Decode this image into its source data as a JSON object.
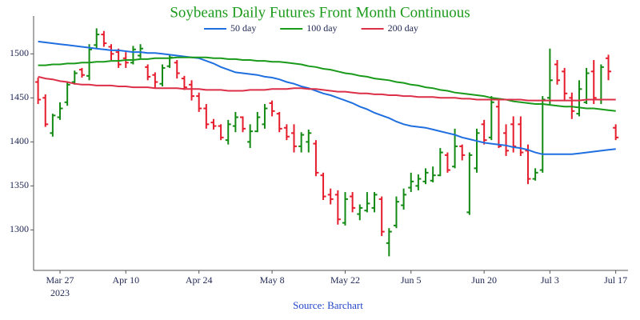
{
  "chart_data": {
    "type": "ohlc",
    "title": "Soybeans Daily Futures Front Month Continuous",
    "source": "Source: Barchart",
    "year_label": "2023",
    "legend": "top",
    "up_color": "#138a13",
    "down_color": "#e51c2c",
    "categories": [
      null,
      null,
      null,
      "Mar 27",
      null,
      null,
      null,
      null,
      null,
      null,
      null,
      null,
      "Apr 10",
      null,
      null,
      null,
      null,
      null,
      null,
      null,
      null,
      null,
      "Apr 24",
      null,
      null,
      null,
      null,
      null,
      null,
      null,
      null,
      null,
      "May 8",
      null,
      null,
      null,
      null,
      null,
      null,
      null,
      null,
      null,
      "May 22",
      null,
      null,
      null,
      null,
      null,
      null,
      null,
      null,
      "Jun 5",
      null,
      null,
      null,
      null,
      null,
      null,
      null,
      null,
      null,
      "Jun 20",
      null,
      null,
      null,
      null,
      null,
      null,
      null,
      null,
      "Jul 3",
      null,
      null,
      null,
      null,
      null,
      null,
      null,
      null,
      "Jul 17"
    ],
    "open": [
      1468,
      1450,
      1410,
      1428,
      1445,
      1468,
      1482,
      1475,
      1510,
      1522,
      1508,
      1502,
      1495,
      1490,
      1498,
      1485,
      1476,
      1466,
      1486,
      1490,
      1472,
      1465,
      1452,
      1438,
      1422,
      1418,
      1402,
      1418,
      1428,
      1400,
      1412,
      1420,
      1444,
      1432,
      1416,
      1410,
      1395,
      1400,
      1398,
      1362,
      1340,
      1340,
      1308,
      1338,
      1318,
      1322,
      1325,
      1335,
      1285,
      1305,
      1328,
      1348,
      1350,
      1355,
      1356,
      1362,
      1385,
      1372,
      1395,
      1320,
      1370,
      1420,
      1405,
      1440,
      1410,
      1420,
      1420,
      1390,
      1358,
      1368,
      1450,
      1488,
      1480,
      1450,
      1432,
      1445,
      1480,
      1448,
      1495,
      1416
    ],
    "high": [
      1473,
      1454,
      1432,
      1445,
      1468,
      1481,
      1484,
      1511,
      1529,
      1526,
      1511,
      1506,
      1502,
      1509,
      1511,
      1488,
      1479,
      1488,
      1499,
      1493,
      1475,
      1470,
      1456,
      1443,
      1426,
      1420,
      1425,
      1434,
      1429,
      1420,
      1434,
      1443,
      1447,
      1434,
      1420,
      1420,
      1411,
      1414,
      1402,
      1365,
      1347,
      1345,
      1343,
      1343,
      1329,
      1343,
      1343,
      1338,
      1302,
      1338,
      1347,
      1365,
      1363,
      1370,
      1372,
      1393,
      1388,
      1415,
      1397,
      1388,
      1415,
      1425,
      1452,
      1447,
      1420,
      1429,
      1429,
      1397,
      1370,
      1452,
      1506,
      1493,
      1484,
      1456,
      1470,
      1484,
      1493,
      1488,
      1499,
      1420
    ],
    "low": [
      1443,
      1417,
      1406,
      1425,
      1441,
      1465,
      1473,
      1470,
      1506,
      1508,
      1493,
      1484,
      1484,
      1488,
      1495,
      1470,
      1461,
      1463,
      1484,
      1472,
      1459,
      1447,
      1434,
      1415,
      1414,
      1402,
      1397,
      1411,
      1411,
      1393,
      1411,
      1415,
      1429,
      1411,
      1402,
      1388,
      1388,
      1388,
      1361,
      1334,
      1329,
      1306,
      1305,
      1320,
      1311,
      1320,
      1320,
      1293,
      1270,
      1302,
      1323,
      1343,
      1345,
      1352,
      1354,
      1361,
      1365,
      1370,
      1379,
      1317,
      1365,
      1397,
      1402,
      1393,
      1384,
      1388,
      1384,
      1352,
      1356,
      1365,
      1443,
      1465,
      1447,
      1426,
      1429,
      1443,
      1443,
      1443,
      1470,
      1402
    ],
    "close": [
      1448,
      1420,
      1430,
      1438,
      1465,
      1478,
      1476,
      1505,
      1522,
      1512,
      1500,
      1488,
      1490,
      1505,
      1506,
      1474,
      1468,
      1484,
      1496,
      1478,
      1462,
      1452,
      1438,
      1420,
      1418,
      1405,
      1420,
      1428,
      1415,
      1412,
      1428,
      1438,
      1435,
      1415,
      1406,
      1395,
      1408,
      1410,
      1365,
      1338,
      1335,
      1312,
      1335,
      1325,
      1325,
      1330,
      1340,
      1298,
      1298,
      1332,
      1340,
      1355,
      1358,
      1365,
      1362,
      1388,
      1368,
      1395,
      1385,
      1385,
      1410,
      1402,
      1445,
      1395,
      1390,
      1395,
      1388,
      1358,
      1365,
      1448,
      1470,
      1470,
      1455,
      1435,
      1460,
      1478,
      1450,
      1485,
      1480,
      1405
    ],
    "series": [
      {
        "name": "50 day",
        "color": "#1f6fe0",
        "values": [
          1514,
          1513,
          1512,
          1511,
          1510,
          1509,
          1508,
          1507,
          1506,
          1505,
          1504,
          1504,
          1503,
          1502,
          1502,
          1501,
          1501,
          1500,
          1499,
          1498,
          1497,
          1496,
          1495,
          1492,
          1489,
          1485,
          1482,
          1479,
          1478,
          1477,
          1476,
          1474,
          1473,
          1471,
          1468,
          1466,
          1463,
          1461,
          1458,
          1455,
          1453,
          1450,
          1447,
          1444,
          1440,
          1437,
          1433,
          1430,
          1427,
          1423,
          1420,
          1418,
          1417,
          1416,
          1414,
          1412,
          1410,
          1408,
          1405,
          1403,
          1401,
          1399,
          1398,
          1397,
          1396,
          1394,
          1393,
          1391,
          1388,
          1386,
          1386,
          1386,
          1386,
          1386,
          1387,
          1388,
          1389,
          1390,
          1391,
          1392
        ]
      },
      {
        "name": "100 day",
        "color": "#1a9a1a",
        "values": [
          1487,
          1487,
          1488,
          1488,
          1489,
          1489,
          1490,
          1490,
          1491,
          1491,
          1492,
          1492,
          1493,
          1493,
          1494,
          1494,
          1495,
          1495,
          1495,
          1496,
          1496,
          1496,
          1496,
          1496,
          1495,
          1495,
          1494,
          1494,
          1493,
          1493,
          1492,
          1492,
          1491,
          1491,
          1490,
          1489,
          1488,
          1486,
          1485,
          1483,
          1482,
          1480,
          1478,
          1477,
          1475,
          1474,
          1472,
          1471,
          1470,
          1468,
          1467,
          1465,
          1464,
          1462,
          1461,
          1459,
          1458,
          1456,
          1455,
          1454,
          1453,
          1452,
          1450,
          1449,
          1448,
          1446,
          1445,
          1444,
          1443,
          1443,
          1442,
          1441,
          1440,
          1440,
          1439,
          1438,
          1438,
          1437,
          1436,
          1435
        ]
      },
      {
        "name": "200 day",
        "color": "#dc2f48",
        "values": [
          1474,
          1472,
          1471,
          1469,
          1468,
          1466,
          1465,
          1465,
          1464,
          1464,
          1464,
          1463,
          1463,
          1462,
          1462,
          1462,
          1461,
          1461,
          1461,
          1461,
          1460,
          1460,
          1460,
          1459,
          1459,
          1459,
          1458,
          1458,
          1458,
          1459,
          1459,
          1459,
          1460,
          1460,
          1460,
          1461,
          1461,
          1460,
          1460,
          1459,
          1458,
          1457,
          1457,
          1456,
          1455,
          1455,
          1454,
          1454,
          1453,
          1453,
          1452,
          1452,
          1451,
          1451,
          1451,
          1450,
          1450,
          1450,
          1449,
          1449,
          1448,
          1448,
          1448,
          1448,
          1448,
          1448,
          1448,
          1447,
          1447,
          1447,
          1447,
          1447,
          1447,
          1447,
          1447,
          1448,
          1448,
          1448,
          1448,
          1448
        ]
      }
    ],
    "ylim": [
      1254,
      1543
    ],
    "yticks": [
      1300,
      1350,
      1400,
      1450,
      1500
    ]
  }
}
